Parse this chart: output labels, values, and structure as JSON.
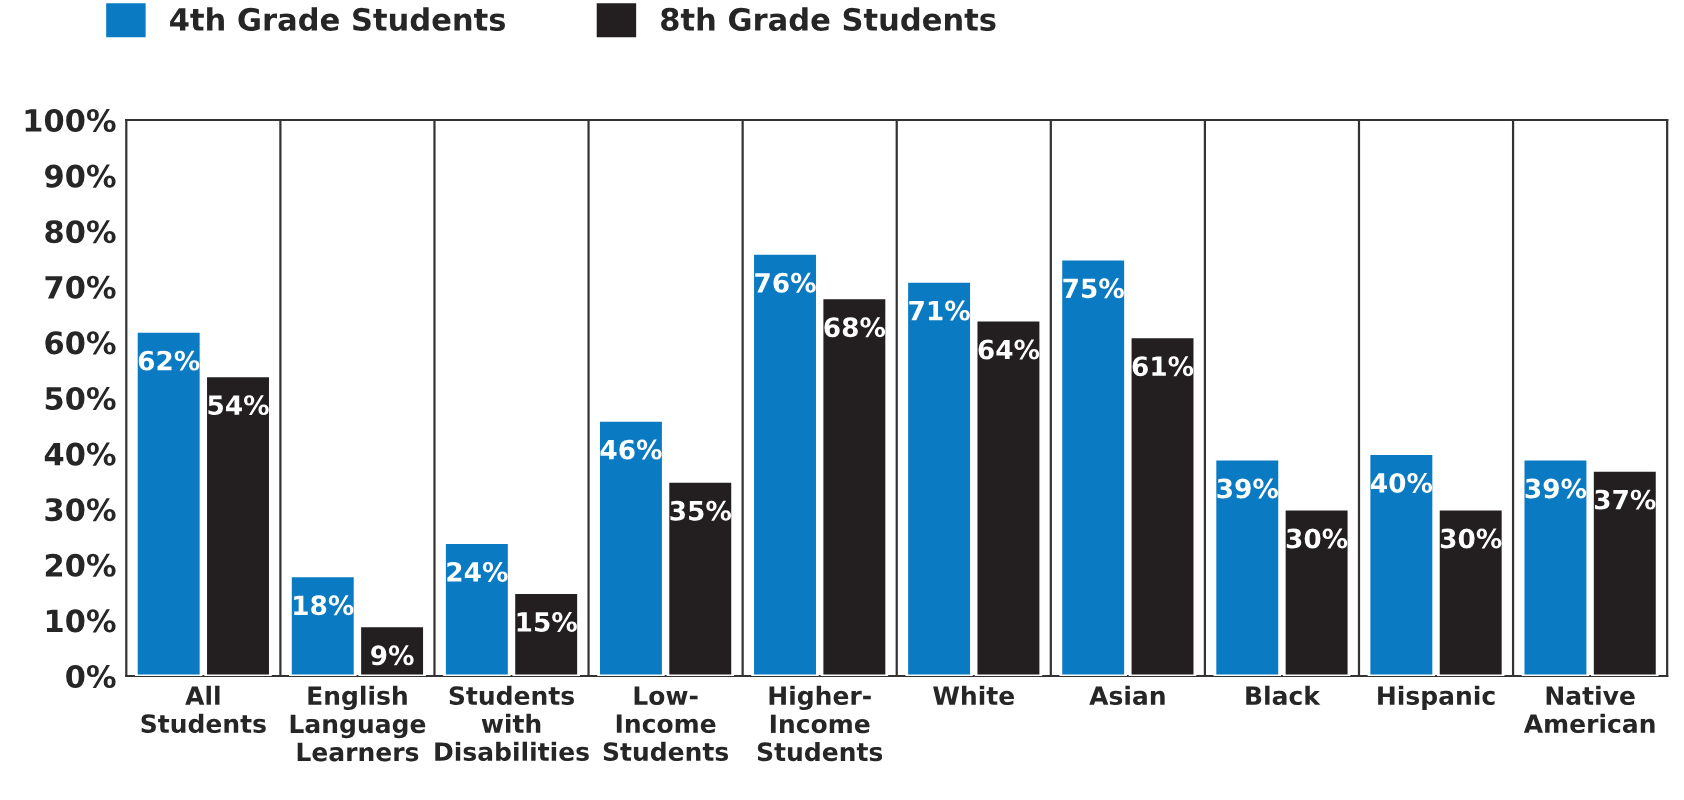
{
  "chart_data": {
    "type": "bar",
    "categories": [
      "All\nStudents",
      "English\nLanguage\nLearners",
      "Students\nwith\nDisabilities",
      "Low-\nIncome\nStudents",
      "Higher-\nIncome\nStudents",
      "White",
      "Asian",
      "Black",
      "Hispanic",
      "Native\nAmerican"
    ],
    "series": [
      {
        "name": "4th Grade Students",
        "color": "#0a7bc2",
        "values": [
          62,
          18,
          24,
          46,
          76,
          71,
          75,
          39,
          40,
          39
        ],
        "value_labels": [
          "62%",
          "18%",
          "24%",
          "46%",
          "76%",
          "71%",
          "75%",
          "39%",
          "40%",
          "39%"
        ]
      },
      {
        "name": "8th Grade Students",
        "color": "#231f20",
        "values": [
          54,
          9,
          15,
          35,
          68,
          64,
          61,
          30,
          30,
          37
        ],
        "value_labels": [
          "54%",
          "9%",
          "15%",
          "35%",
          "68%",
          "64%",
          "61%",
          "30%",
          "30%",
          "37%"
        ]
      }
    ],
    "ylim": [
      0,
      100
    ],
    "yticks": [
      {
        "value": 0,
        "label": "0%"
      },
      {
        "value": 10,
        "label": "10%"
      },
      {
        "value": 20,
        "label": "20%"
      },
      {
        "value": 30,
        "label": "30%"
      },
      {
        "value": 40,
        "label": "40%"
      },
      {
        "value": 50,
        "label": "50%"
      },
      {
        "value": 60,
        "label": "60%"
      },
      {
        "value": 70,
        "label": "70%"
      },
      {
        "value": 80,
        "label": "80%"
      },
      {
        "value": 90,
        "label": "90%"
      },
      {
        "value": 100,
        "label": "100%"
      }
    ],
    "grid": "x",
    "legend": "top left"
  }
}
